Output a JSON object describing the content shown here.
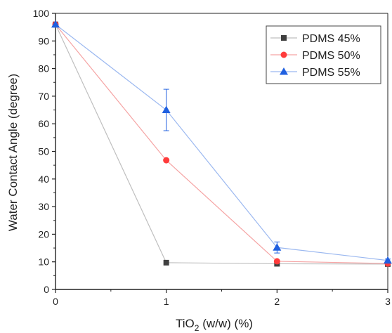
{
  "chart_data": {
    "type": "line",
    "title": "",
    "xlabel_main": "TiO",
    "xlabel_sub": "2",
    "xlabel_rest": " (w/w) (%)",
    "ylabel": "Water Contact Angle (degree)",
    "xlim": [
      0,
      3
    ],
    "ylim": [
      0,
      100
    ],
    "x_ticks": [
      "0",
      "1",
      "2",
      "3"
    ],
    "y_ticks": [
      "0",
      "10",
      "20",
      "30",
      "40",
      "50",
      "60",
      "70",
      "80",
      "90",
      "100"
    ],
    "legend_position": "top-right",
    "grid": false,
    "x": [
      0,
      1,
      2,
      3
    ],
    "series": [
      {
        "name": "PDMS 45%",
        "values": [
          96,
          9.7,
          9.3,
          9.2
        ],
        "errors": [
          0,
          0,
          0,
          0
        ],
        "color": "#404040",
        "line_color": "#bfbfbf",
        "marker": "square"
      },
      {
        "name": "PDMS 50%",
        "values": [
          96,
          46.8,
          10.2,
          9.4
        ],
        "errors": [
          0,
          0,
          0,
          0
        ],
        "color": "#ff3b3b",
        "line_color": "#f5a3a3",
        "marker": "circle"
      },
      {
        "name": "PDMS 55%",
        "values": [
          96,
          65,
          15.2,
          10.5
        ],
        "errors": [
          0,
          7.5,
          2,
          0.5
        ],
        "color": "#2060e0",
        "line_color": "#9bb8f0",
        "marker": "triangle"
      }
    ]
  }
}
